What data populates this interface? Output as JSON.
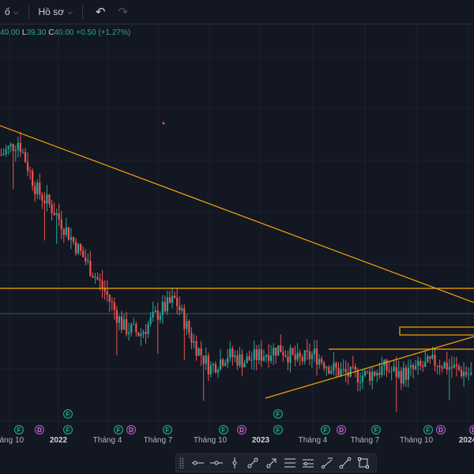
{
  "topbar": {
    "left_glyph": "ố",
    "profile_label": "Hồ sơ",
    "undo_icon": "undo-icon",
    "redo_icon": "redo-icon"
  },
  "legend": {
    "open_value": "40.00",
    "high_label": "L",
    "high_value": "39.30",
    "close_label": "C",
    "close_value": "40.00",
    "change": "+0.50 (+1.27%)"
  },
  "x_axis": {
    "labels": [
      "háng 10",
      "2022",
      "Tháng 4",
      "Tháng 7",
      "Tháng 10",
      "2023",
      "Tháng 4",
      "Tháng 7",
      "Tháng 10",
      "2024"
    ]
  },
  "events": {
    "items": [
      {
        "type": "F",
        "label": "F"
      },
      {
        "type": "D",
        "label": "D"
      },
      {
        "type": "F",
        "label": "F"
      },
      {
        "type": "F",
        "label": "F"
      },
      {
        "type": "F",
        "label": "F"
      },
      {
        "type": "D",
        "label": "D"
      },
      {
        "type": "F",
        "label": "F"
      },
      {
        "type": "F",
        "label": "F"
      },
      {
        "type": "D",
        "label": "D"
      },
      {
        "type": "F",
        "label": "F"
      },
      {
        "type": "F",
        "label": "F"
      },
      {
        "type": "F",
        "label": "F"
      },
      {
        "type": "D",
        "label": "D"
      },
      {
        "type": "F",
        "label": "F"
      },
      {
        "type": "F",
        "label": "F"
      },
      {
        "type": "D",
        "label": "D"
      },
      {
        "type": "D",
        "label": "D"
      }
    ]
  },
  "colors": {
    "up": "#26a69a",
    "down": "#ef5350",
    "drawing": "#f7a600",
    "background": "#131722"
  },
  "drawing_toolbar": {
    "tools": [
      "horizontal-ray-icon",
      "horizontal-line-icon",
      "vertical-line-icon",
      "trend-line-icon",
      "arrow-icon",
      "fib-icon",
      "parallel-channel-icon",
      "info-line-icon",
      "line-icon",
      "rectangle-icon"
    ]
  },
  "chart_data": {
    "type": "candlestick",
    "trend": [
      40,
      42,
      35,
      32,
      28,
      24,
      20,
      15,
      14,
      17,
      19,
      13,
      9,
      11,
      10,
      11,
      12,
      10,
      11,
      9,
      8,
      8,
      9,
      8,
      9,
      10,
      9,
      8
    ]
  }
}
